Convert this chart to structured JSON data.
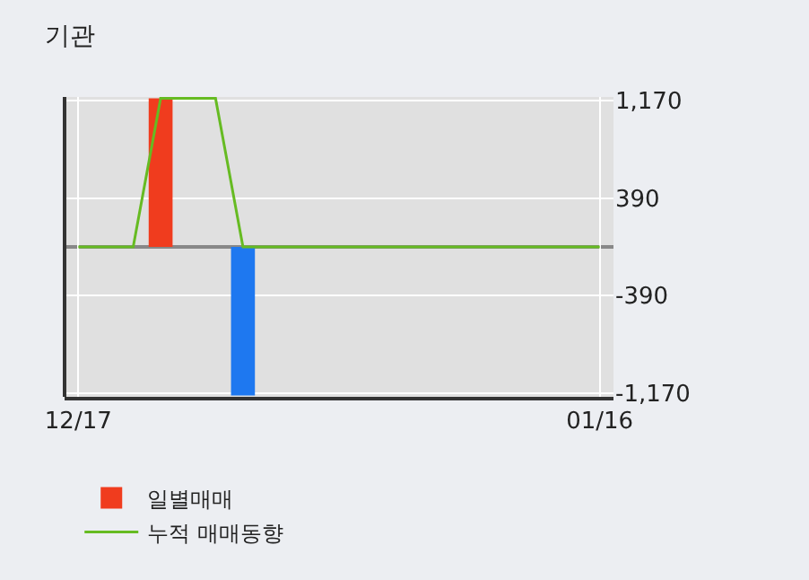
{
  "chart_data": {
    "type": "bar",
    "title": "기관",
    "categories": [
      "12/17",
      null,
      null,
      null,
      null,
      null,
      null,
      null,
      null,
      null,
      null,
      null,
      null,
      null,
      null,
      null,
      null,
      null,
      null,
      "01/16"
    ],
    "series": [
      {
        "name": "일별매매",
        "colors": [
          "#f03c1e",
          "#f03c1e",
          "#f03c1e",
          "#f03c1e",
          "#f03c1e",
          "#f03c1e",
          "#1e78f0",
          "#f03c1e",
          "#f03c1e",
          "#f03c1e",
          "#f03c1e",
          "#f03c1e",
          "#f03c1e",
          "#f03c1e",
          "#f03c1e",
          "#f03c1e",
          "#f03c1e",
          "#f03c1e",
          "#f03c1e",
          "#f03c1e"
        ],
        "values": [
          0,
          0,
          0,
          1190,
          0,
          0,
          -1190,
          0,
          0,
          0,
          0,
          0,
          0,
          0,
          0,
          0,
          0,
          0,
          0,
          0
        ]
      },
      {
        "name": "누적 매매동향",
        "type": "line",
        "color": "#66bb22",
        "values": [
          0,
          0,
          0,
          1190,
          1190,
          1190,
          0,
          0,
          0,
          0,
          0,
          0,
          0,
          0,
          0,
          0,
          0,
          0,
          0,
          0
        ]
      }
    ],
    "ylim": [
      -1200,
      1200
    ],
    "yticks": [
      {
        "value": 1170,
        "label": "1,170"
      },
      {
        "value": 390,
        "label": "390"
      },
      {
        "value": -390,
        "label": "-390"
      },
      {
        "value": -1170,
        "label": "-1,170"
      }
    ],
    "ref_lines": [
      {
        "axis": "y",
        "value": 0,
        "color": "#888888"
      }
    ],
    "grid": true,
    "legend": "bottom",
    "marker": "none"
  }
}
